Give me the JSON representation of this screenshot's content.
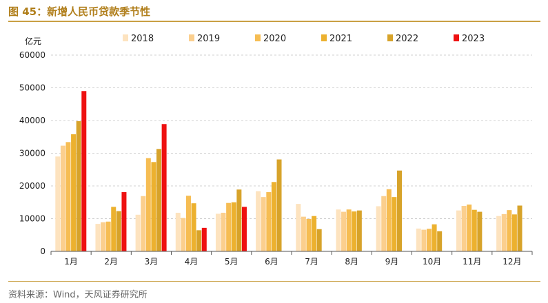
{
  "title": "图 45：新增人民币贷款季节性",
  "source": "资料来源：Wind，天风证券研究所",
  "chart_data": {
    "type": "bar",
    "unit": "亿元",
    "categories": [
      "1月",
      "2月",
      "3月",
      "4月",
      "5月",
      "6月",
      "7月",
      "8月",
      "9月",
      "10月",
      "11月",
      "12月"
    ],
    "ylim": [
      0,
      60000
    ],
    "yticks": [
      0,
      10000,
      20000,
      30000,
      40000,
      50000,
      60000
    ],
    "grid": true,
    "legend_position": "top",
    "series": [
      {
        "name": "2018",
        "color": "#fde3bf",
        "values": [
          29000,
          8400,
          11200,
          11800,
          11500,
          18400,
          14500,
          12800,
          13800,
          6970,
          12500,
          10800
        ]
      },
      {
        "name": "2019",
        "color": "#fbcf8e",
        "values": [
          32300,
          8900,
          16900,
          10200,
          11800,
          16600,
          10600,
          12100,
          16900,
          6613,
          13900,
          11400
        ]
      },
      {
        "name": "2020",
        "color": "#f6bd53",
        "values": [
          33400,
          9100,
          28500,
          17000,
          14800,
          18100,
          9900,
          12800,
          19000,
          6898,
          14300,
          12600
        ]
      },
      {
        "name": "2021",
        "color": "#ecb12f",
        "values": [
          35800,
          13600,
          27300,
          14700,
          15000,
          21200,
          10800,
          12200,
          16600,
          8262,
          12700,
          11300
        ]
      },
      {
        "name": "2022",
        "color": "#d7a32a",
        "values": [
          39800,
          12300,
          31300,
          6454,
          18900,
          28100,
          6790,
          12500,
          24700,
          6152,
          12100,
          14000
        ]
      },
      {
        "name": "2023",
        "color": "#ee1111",
        "values": [
          49000,
          18100,
          38900,
          7188,
          13600,
          null,
          null,
          null,
          null,
          null,
          null,
          null
        ]
      }
    ]
  }
}
